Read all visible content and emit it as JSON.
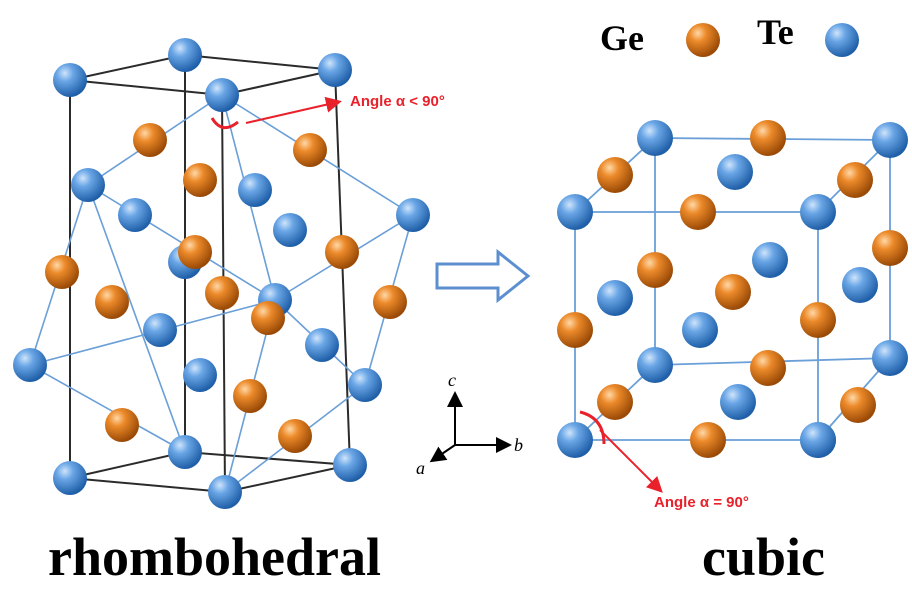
{
  "legend": {
    "ge_label": "Ge",
    "te_label": "Te",
    "ge_color": "#e0741c",
    "te_color": "#4a90d9"
  },
  "rhombohedral": {
    "caption": "rhombohedral",
    "angle_label": "Angle α < 90°"
  },
  "cubic": {
    "caption": "cubic",
    "angle_label": "Angle α = 90°"
  },
  "axes": {
    "c": "c",
    "b": "b",
    "a": "a"
  },
  "colors": {
    "bond_line": "#6a9fd8",
    "cell_edge": "#2b2b2b",
    "arrow_red": "#e8212b",
    "transition_arrow": "#5b8fcf"
  }
}
